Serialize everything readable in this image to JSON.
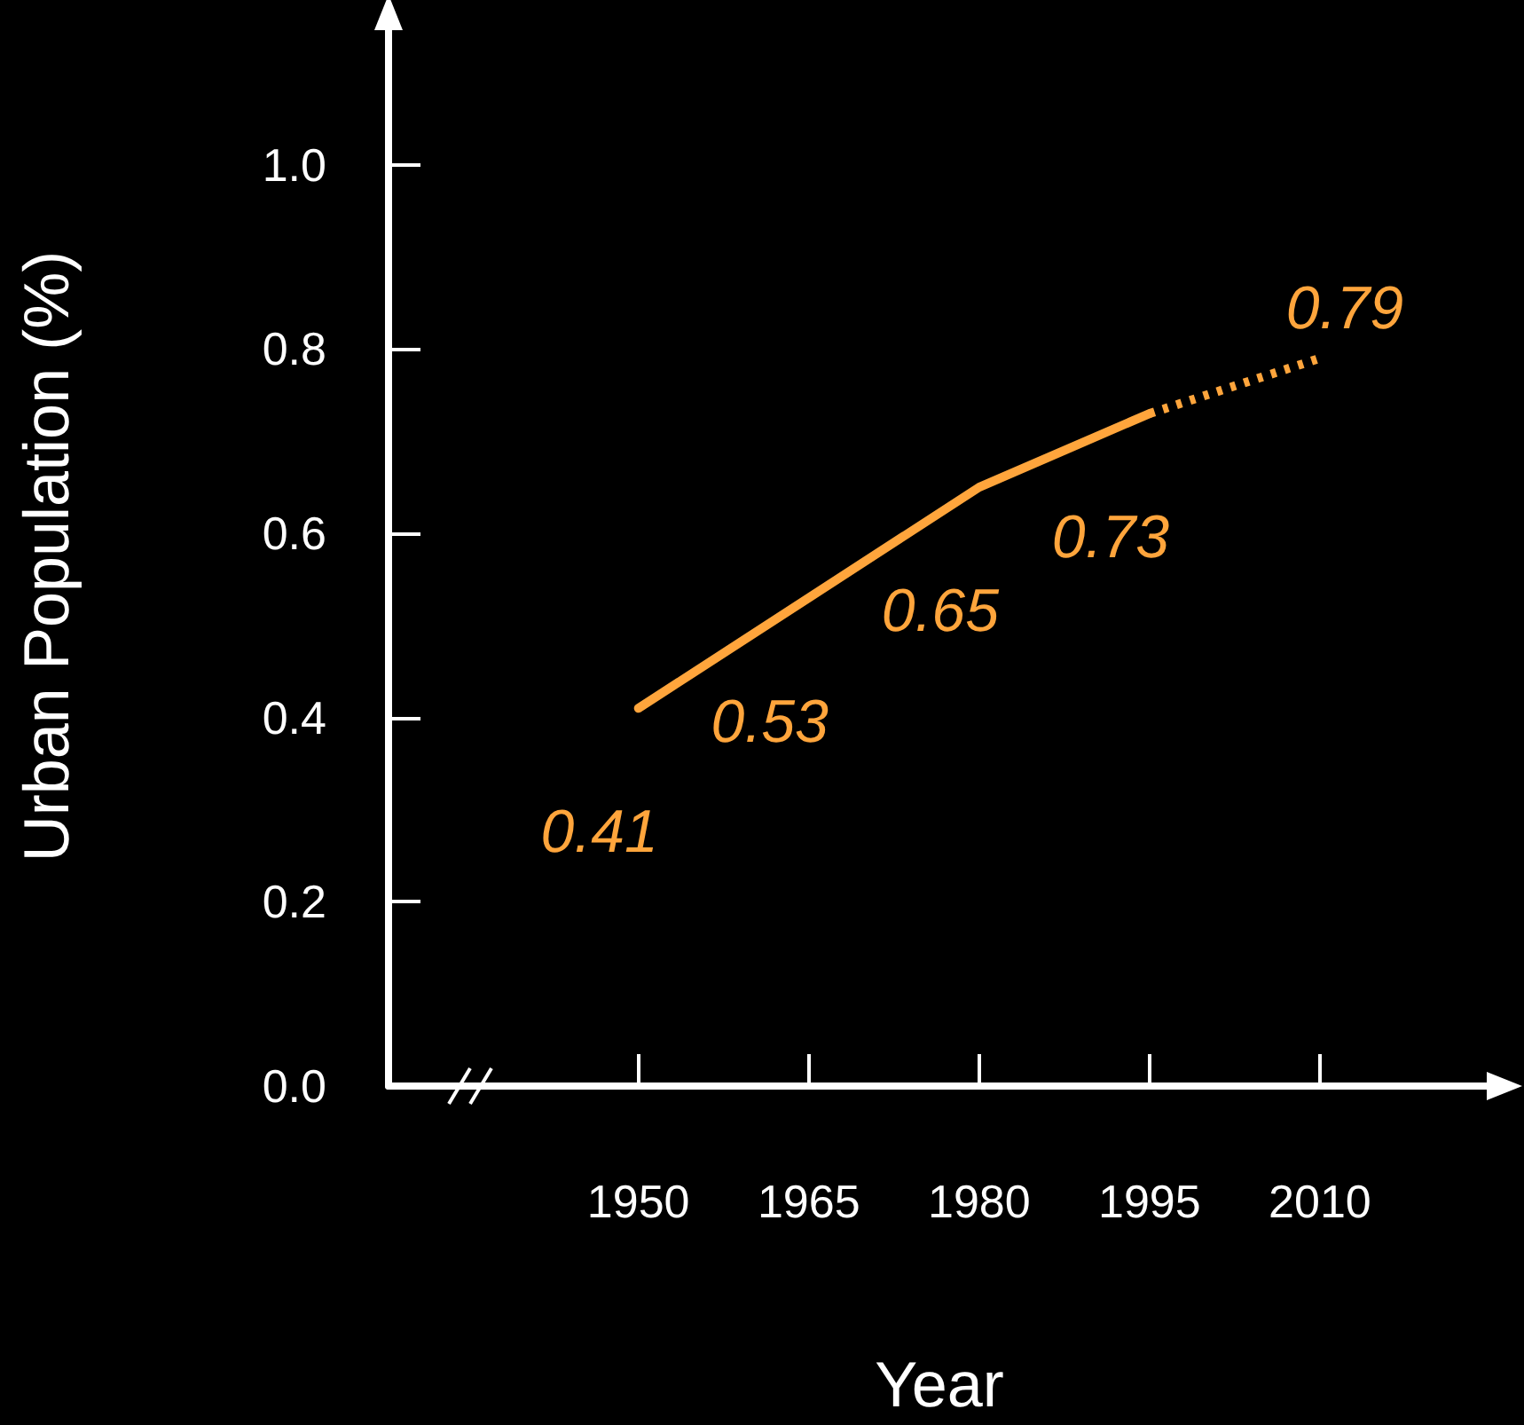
{
  "chart_data": {
    "type": "line",
    "xlabel": "Year",
    "ylabel": "Urban Population (%)",
    "series": [
      {
        "color": "#ffa53c",
        "x": [
          1950,
          1965,
          1980,
          1995
        ],
        "values": [
          0.41,
          0.53,
          0.65,
          0.73
        ],
        "value_labels": [
          "0.41",
          "0.53",
          "0.65",
          "0.73"
        ],
        "line_style": "solid"
      },
      {
        "color": "#ffa53c",
        "x": [
          1995,
          2010
        ],
        "values": [
          0.73,
          0.79
        ],
        "value_labels": [
          null,
          "0.79"
        ],
        "line_style": "dotted"
      }
    ],
    "xlim": [
      1928,
      2025
    ],
    "xticks": [
      1950,
      1965,
      1980,
      1995,
      2010
    ],
    "ylim": [
      0,
      1.15
    ],
    "yticks": [
      {
        "value": 0,
        "label": "0.0"
      },
      {
        "value": 0.2,
        "label": "0.2"
      },
      {
        "value": 0.4,
        "label": "0.4"
      },
      {
        "value": 0.6,
        "label": "0.6"
      },
      {
        "value": 0.8,
        "label": "0.8"
      },
      {
        "value": 1,
        "label": "1.0"
      }
    ],
    "grid": false,
    "marker": "none"
  }
}
